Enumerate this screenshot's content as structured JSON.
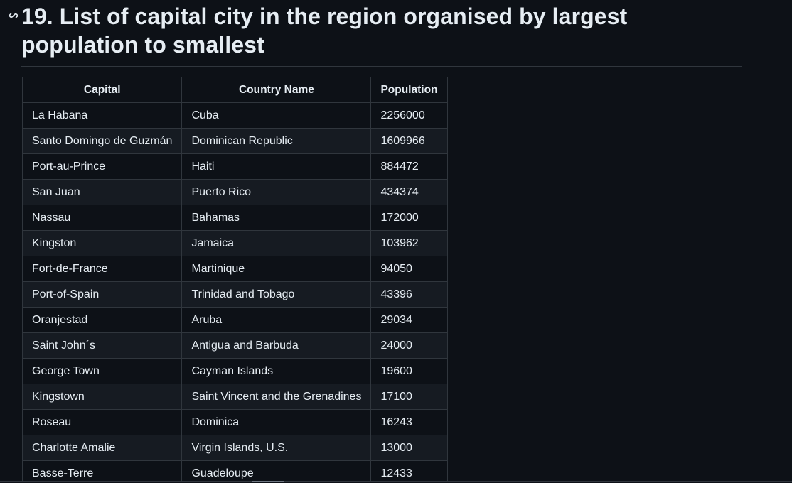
{
  "heading": {
    "text": "19. List of capital city in the region organised by largest population to smallest"
  },
  "table": {
    "columns": [
      "Capital",
      "Country Name",
      "Population"
    ],
    "rows": [
      [
        "La Habana",
        "Cuba",
        "2256000"
      ],
      [
        "Santo Domingo de Guzmán",
        "Dominican Republic",
        "1609966"
      ],
      [
        "Port-au-Prince",
        "Haiti",
        "884472"
      ],
      [
        "San Juan",
        "Puerto Rico",
        "434374"
      ],
      [
        "Nassau",
        "Bahamas",
        "172000"
      ],
      [
        "Kingston",
        "Jamaica",
        "103962"
      ],
      [
        "Fort-de-France",
        "Martinique",
        "94050"
      ],
      [
        "Port-of-Spain",
        "Trinidad and Tobago",
        "43396"
      ],
      [
        "Oranjestad",
        "Aruba",
        "29034"
      ],
      [
        "Saint John´s",
        "Antigua and Barbuda",
        "24000"
      ],
      [
        "George Town",
        "Cayman Islands",
        "19600"
      ],
      [
        "Kingstown",
        "Saint Vincent and the Grenadines",
        "17100"
      ],
      [
        "Roseau",
        "Dominica",
        "16243"
      ],
      [
        "Charlotte Amalie",
        "Virgin Islands, U.S.",
        "13000"
      ],
      [
        "Basse-Terre",
        "Guadeloupe",
        "12433"
      ]
    ]
  }
}
